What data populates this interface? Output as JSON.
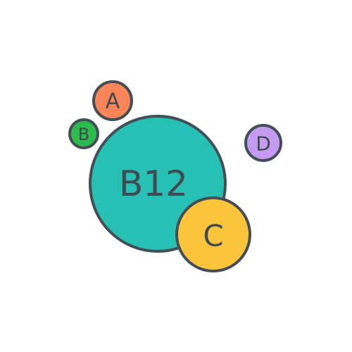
{
  "illustration": {
    "bubbles": {
      "b12": {
        "label": "B12",
        "color": "#26c0b4"
      },
      "c": {
        "label": "C",
        "color": "#fcc43a"
      },
      "a": {
        "label": "A",
        "color": "#fa8558"
      },
      "b": {
        "label": "B",
        "color": "#2dbb4e"
      },
      "d": {
        "label": "D",
        "color": "#c49bf0"
      }
    },
    "outline_color": "#434e56"
  }
}
